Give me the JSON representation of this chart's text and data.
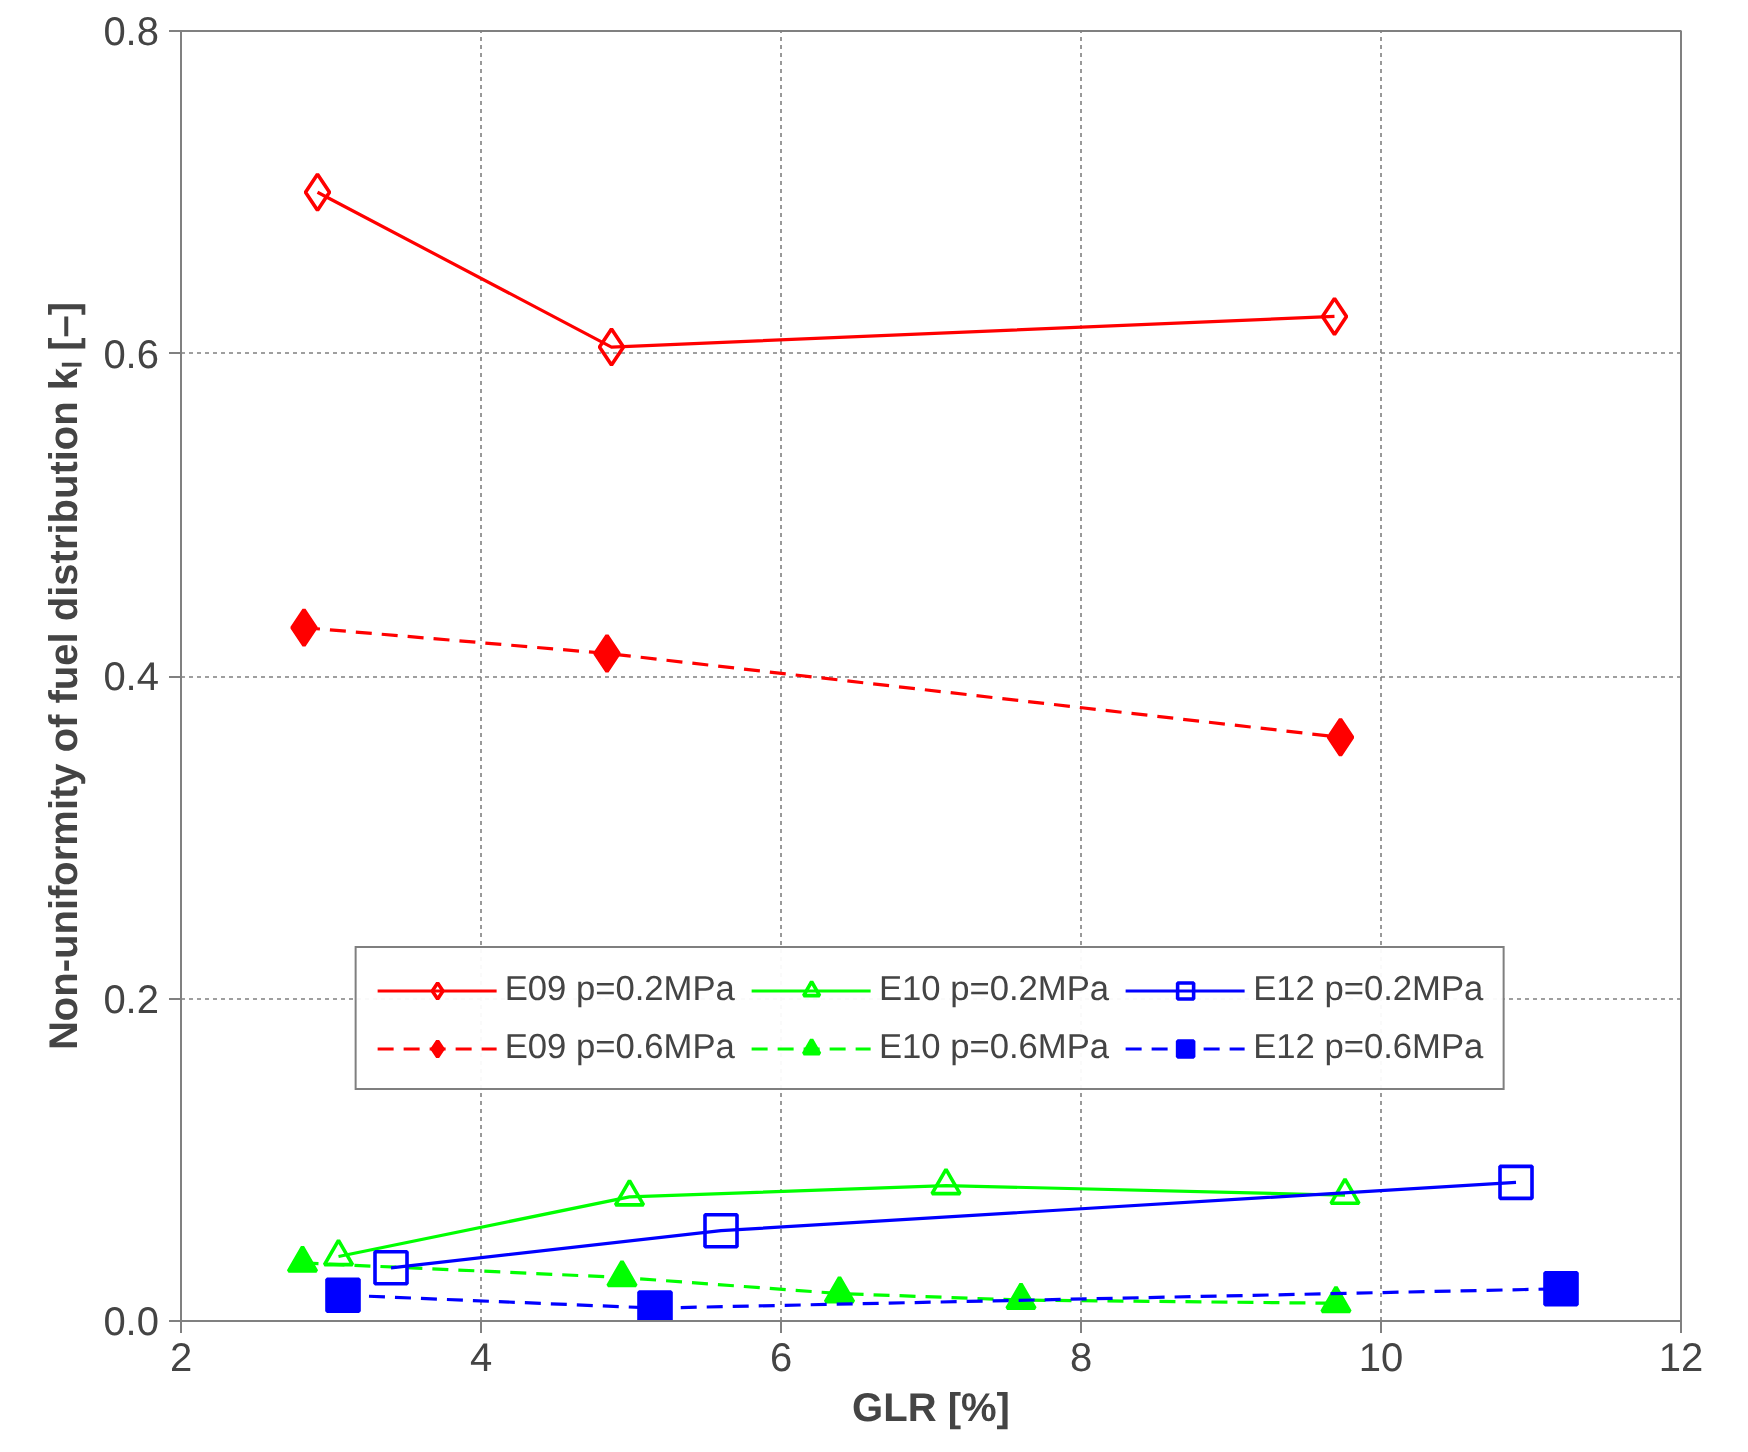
{
  "chart_data": {
    "type": "line",
    "xlabel": "GLR [%]",
    "ylabel": "Non-uniformity of fuel distribution kₗ [–]",
    "xlim": [
      2,
      12
    ],
    "ylim": [
      0,
      0.8
    ],
    "xticks": [
      2,
      4,
      6,
      8,
      10,
      12
    ],
    "yticks": [
      {
        "value": 0,
        "label": "0.0"
      },
      {
        "value": 0.2,
        "label": "0.2"
      },
      {
        "value": 0.4,
        "label": "0.4"
      },
      {
        "value": 0.6,
        "label": "0.6"
      },
      {
        "value": 0.8,
        "label": "0.8"
      }
    ],
    "grid": true,
    "legend": "bottom",
    "series": [
      {
        "name": "E09 p=0.2MPa",
        "color": "#ff0000",
        "marker": "diamond",
        "line_style": "solid",
        "x": [
          2.91,
          4.87,
          9.69
        ],
        "values": [
          0.7,
          0.604,
          0.623
        ]
      },
      {
        "name": "E09 p=0.6MPa",
        "color": "#ff0000",
        "marker": "diamond",
        "line_style": "dashed",
        "x": [
          2.82,
          4.84,
          9.73
        ],
        "values": [
          0.43,
          0.414,
          0.362
        ]
      },
      {
        "name": "E10 p=0.2MPa",
        "color": "#00ff00",
        "marker": "triangle",
        "line_style": "solid",
        "x": [
          3.05,
          4.99,
          7.1,
          9.76
        ],
        "values": [
          0.04,
          0.077,
          0.084,
          0.078
        ]
      },
      {
        "name": "E10 p=0.6MPa",
        "color": "#00ff00",
        "marker": "triangle",
        "line_style": "dashed",
        "x": [
          2.81,
          4.94,
          6.39,
          7.6,
          9.7
        ],
        "values": [
          0.036,
          0.027,
          0.017,
          0.013,
          0.011
        ]
      },
      {
        "name": "E12 p=0.2MPa",
        "color": "#0000ff",
        "marker": "square",
        "line_style": "solid",
        "x": [
          3.4,
          5.6,
          10.9
        ],
        "values": [
          0.033,
          0.056,
          0.086
        ]
      },
      {
        "name": "E12 p=0.6MPa",
        "color": "#0000ff",
        "marker": "square",
        "line_style": "dashed",
        "x": [
          3.08,
          5.16,
          11.2
        ],
        "values": [
          0.016,
          0.008,
          0.02
        ]
      }
    ]
  }
}
